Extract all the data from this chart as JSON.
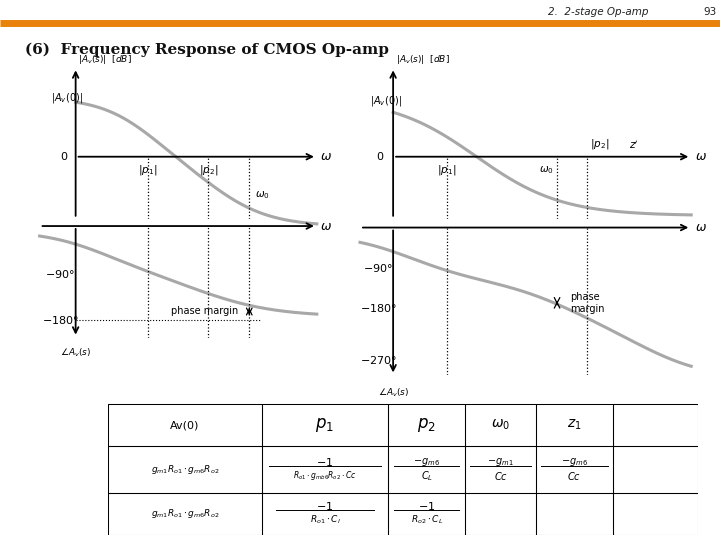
{
  "title_header": "2.  2-stage Op-amp",
  "page_num": "93",
  "section_title": "(6)  Frequency Response of CMOS Op-amp",
  "header_line_color": "#E8820C",
  "bg_color": "#FFFFFF",
  "curve_color": "#A8A8A8",
  "curve_lw": 2.2
}
